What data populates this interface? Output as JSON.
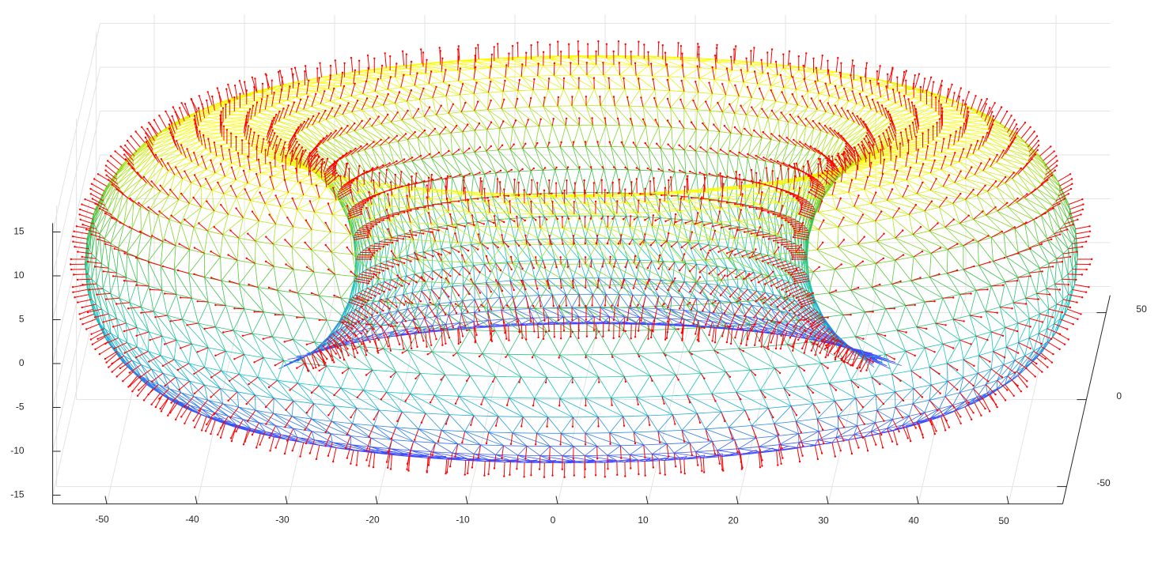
{
  "chart_data": {
    "type": "torus-mesh",
    "xlim": [
      -56,
      56
    ],
    "ylim": [
      -60,
      60
    ],
    "zlim": [
      -16,
      16
    ],
    "xticks": [
      -50,
      -40,
      -30,
      -20,
      -10,
      0,
      10,
      20,
      30,
      40,
      50
    ],
    "yticks": [
      -50,
      0,
      50
    ],
    "zticks": [
      -15,
      -10,
      -5,
      0,
      5,
      10,
      15
    ],
    "grid": true,
    "surface": {
      "major_radius": 40,
      "minor_radius": 15
    },
    "colormap": [
      "#4040ff",
      "#10c8c8",
      "#40c040",
      "#ffff00"
    ],
    "normal_color": "#ff0000"
  }
}
